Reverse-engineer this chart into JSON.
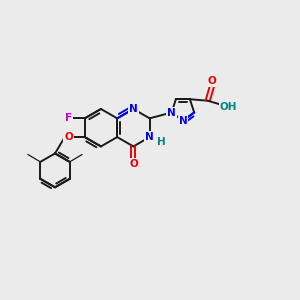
{
  "bg_color": "#ebebeb",
  "bond_color": "#1a1a1a",
  "N_color": "#0000ee",
  "O_color": "#ee0000",
  "F_color": "#cc00cc",
  "H_color": "#008888",
  "figsize": [
    3.0,
    3.0
  ],
  "dpi": 100,
  "lw": 1.4,
  "lw_thin": 0.9,
  "fs": 7.5,
  "xlim": [
    0,
    10
  ],
  "ylim": [
    0,
    10
  ]
}
